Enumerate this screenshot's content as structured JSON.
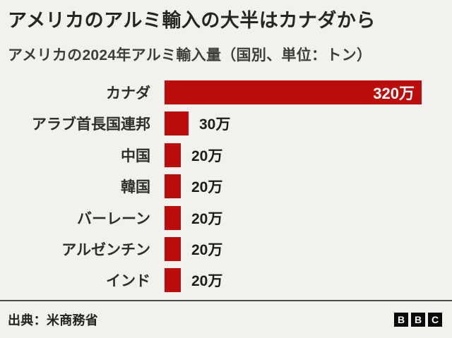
{
  "header": {
    "title": "アメリカのアルミ輸入の大半はカナダから",
    "subtitle": "アメリカの2024年アルミ輸入量（国別、単位：トン）"
  },
  "chart_data": {
    "type": "bar",
    "orientation": "horizontal",
    "title": "アメリカのアルミ輸入の大半はカナダから",
    "subtitle": "アメリカの2024年アルミ輸入量（国別、単位：トン）",
    "categories": [
      "カナダ",
      "アラブ首長国連邦",
      "中国",
      "韓国",
      "バーレーン",
      "アルゼンチン",
      "インド"
    ],
    "values": [
      320,
      30,
      20,
      20,
      20,
      20,
      20
    ],
    "value_labels": [
      "320万",
      "30万",
      "20万",
      "20万",
      "20万",
      "20万",
      "20万"
    ],
    "value_suffix": "万",
    "xlim": [
      0,
      320
    ],
    "grid": false,
    "legend": false,
    "bar_color": "#bd0c0c"
  },
  "footer": {
    "source": "出典：米商務省",
    "logo_letters": [
      "B",
      "B",
      "C"
    ]
  },
  "colors": {
    "background": "#f3f1ee",
    "bar": "#bd0c0c",
    "title_text": "#252523",
    "subtitle_text": "#3e3e3c",
    "value_inside_text": "#ffffff",
    "value_outside_text": "#1c1c1b",
    "divider": "#4b4b4b",
    "logo_block": "#0a0a0a"
  }
}
